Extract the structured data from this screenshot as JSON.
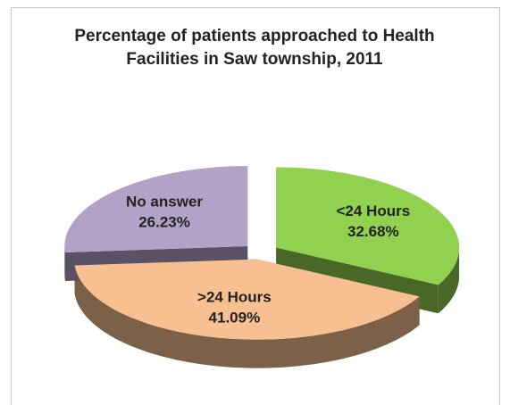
{
  "chart_data": {
    "type": "pie",
    "title": "Percentage of patients approached to Health Facilities in Saw township, 2011",
    "categories": [
      "<24 Hours",
      ">24 Hours",
      "No answer"
    ],
    "values": [
      32.68,
      41.09,
      26.23
    ],
    "value_labels": [
      "32.68%",
      "41.09%",
      "26.23%"
    ],
    "colors": [
      "#92d050",
      "#f8c090",
      "#b3a2c7"
    ]
  }
}
